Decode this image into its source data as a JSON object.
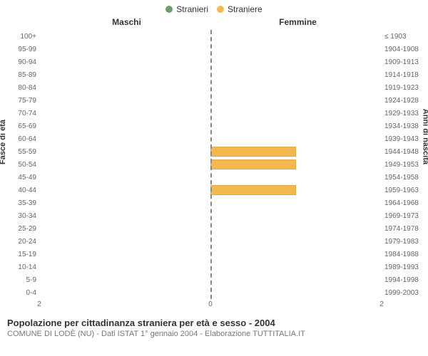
{
  "legend": {
    "items": [
      {
        "label": "Stranieri",
        "color": "#6b9e6b"
      },
      {
        "label": "Straniere",
        "color": "#f5b84f"
      }
    ]
  },
  "headers": {
    "left": "Maschi",
    "right": "Femmine"
  },
  "axis_labels": {
    "left": "Fasce di età",
    "right": "Anni di nascita"
  },
  "chart": {
    "type": "population-pyramid",
    "x_max": 2,
    "x_ticks_left": [
      2,
      0
    ],
    "x_ticks_right": [
      0,
      2
    ],
    "male_color": "#6b9e6b",
    "female_color": "#f5b84f",
    "center_line_color": "#888888",
    "background_color": "#ffffff",
    "bar_height_pct": 80,
    "rows": [
      {
        "age": "100+",
        "birth": "≤ 1903",
        "m": 0,
        "f": 0
      },
      {
        "age": "95-99",
        "birth": "1904-1908",
        "m": 0,
        "f": 0
      },
      {
        "age": "90-94",
        "birth": "1909-1913",
        "m": 0,
        "f": 0
      },
      {
        "age": "85-89",
        "birth": "1914-1918",
        "m": 0,
        "f": 0
      },
      {
        "age": "80-84",
        "birth": "1919-1923",
        "m": 0,
        "f": 0
      },
      {
        "age": "75-79",
        "birth": "1924-1928",
        "m": 0,
        "f": 0
      },
      {
        "age": "70-74",
        "birth": "1929-1933",
        "m": 0,
        "f": 0
      },
      {
        "age": "65-69",
        "birth": "1934-1938",
        "m": 0,
        "f": 0
      },
      {
        "age": "60-64",
        "birth": "1939-1943",
        "m": 0,
        "f": 0
      },
      {
        "age": "55-59",
        "birth": "1944-1948",
        "m": 0,
        "f": 1
      },
      {
        "age": "50-54",
        "birth": "1949-1953",
        "m": 0,
        "f": 1
      },
      {
        "age": "45-49",
        "birth": "1954-1958",
        "m": 0,
        "f": 0
      },
      {
        "age": "40-44",
        "birth": "1959-1963",
        "m": 0,
        "f": 1
      },
      {
        "age": "35-39",
        "birth": "1964-1968",
        "m": 0,
        "f": 0
      },
      {
        "age": "30-34",
        "birth": "1969-1973",
        "m": 0,
        "f": 0
      },
      {
        "age": "25-29",
        "birth": "1974-1978",
        "m": 0,
        "f": 0
      },
      {
        "age": "20-24",
        "birth": "1979-1983",
        "m": 0,
        "f": 0
      },
      {
        "age": "15-19",
        "birth": "1984-1988",
        "m": 0,
        "f": 0
      },
      {
        "age": "10-14",
        "birth": "1989-1993",
        "m": 0,
        "f": 0
      },
      {
        "age": "5-9",
        "birth": "1994-1998",
        "m": 0,
        "f": 0
      },
      {
        "age": "0-4",
        "birth": "1999-2003",
        "m": 0,
        "f": 0
      }
    ]
  },
  "footer": {
    "title": "Popolazione per cittadinanza straniera per età e sesso - 2004",
    "subtitle": "COMUNE DI LODÈ (NU) - Dati ISTAT 1° gennaio 2004 - Elaborazione TUTTITALIA.IT"
  }
}
